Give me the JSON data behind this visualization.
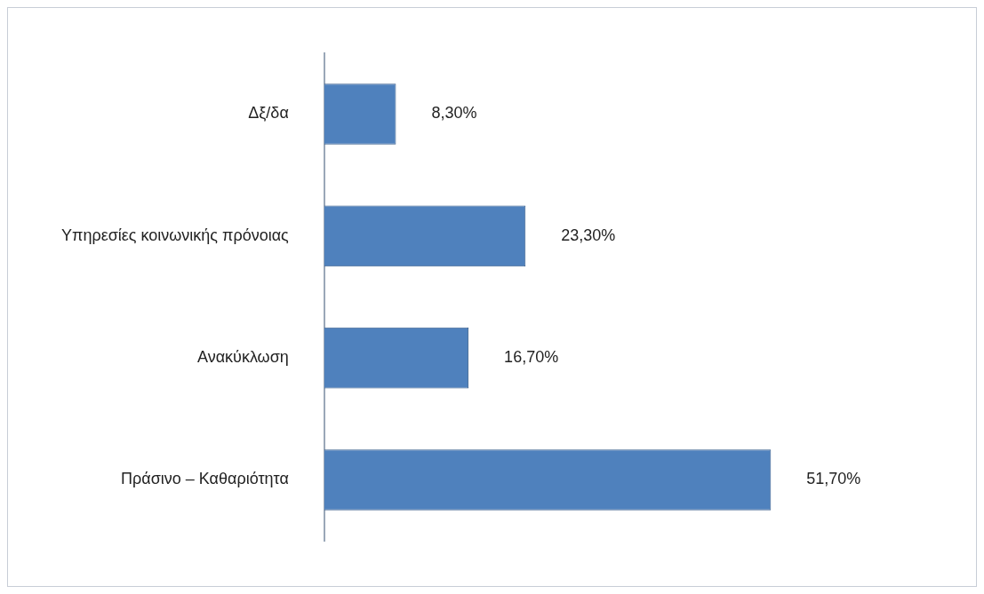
{
  "chart_data": {
    "type": "bar",
    "orientation": "horizontal",
    "categories": [
      "Δξ/δα",
      "Υπηρεσίες κοινωνικής πρόνοιας",
      "Ανακύκλωση",
      "Πράσινο – Καθαριότητα"
    ],
    "values": [
      8.3,
      23.3,
      16.7,
      51.7
    ],
    "value_labels": [
      "8,30%",
      "23,30%",
      "16,70%",
      "51,70%"
    ],
    "color": "#4f81bd",
    "grid": false,
    "legend": false,
    "tick_labels": "y"
  }
}
